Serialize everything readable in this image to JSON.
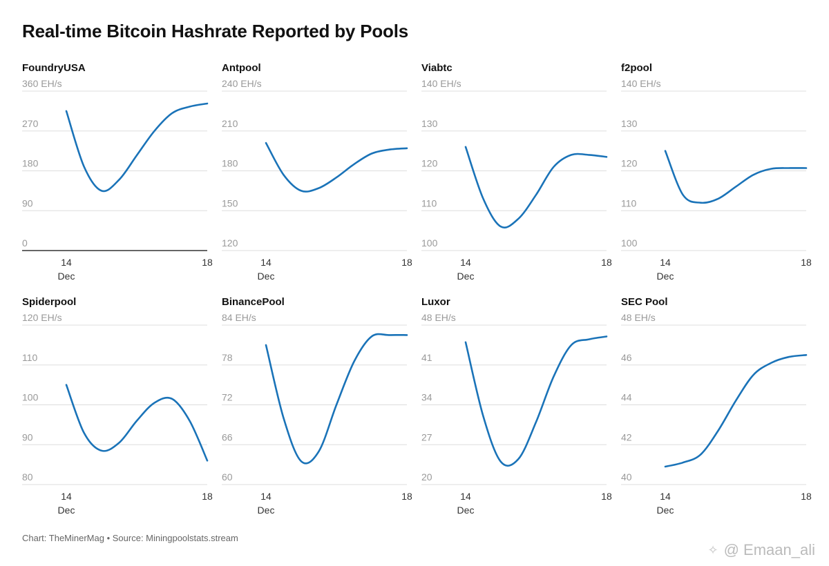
{
  "title": "Real-time Bitcoin Hashrate Reported by Pools",
  "footer": "Chart: TheMinerMag • Source: Miningpoolstats.stream",
  "watermark": {
    "icon": "binance-logo-icon",
    "text": "@ Emaan_ali"
  },
  "colors": {
    "line": "#1a73b8",
    "grid": "#dddddd",
    "baseline": "#333333"
  },
  "x_axis": {
    "ticks": [
      {
        "x": 14,
        "label": "14",
        "sublabel": "Dec"
      },
      {
        "x": 18,
        "label": "18",
        "sublabel": ""
      }
    ],
    "range": [
      14,
      18
    ]
  },
  "chart_data": [
    {
      "type": "line",
      "title": "FoundryUSA",
      "unit": "EH/s",
      "ylim": [
        0,
        360
      ],
      "yticks": [
        "360 EH/s",
        "270",
        "180",
        "90",
        "0"
      ],
      "ytick_values": [
        360,
        270,
        180,
        90,
        0
      ],
      "baseline_dark": true,
      "x": [
        14,
        14.5,
        15,
        15.5,
        16,
        16.5,
        17,
        17.5,
        18
      ],
      "y": [
        315,
        190,
        135,
        160,
        215,
        270,
        310,
        325,
        332
      ]
    },
    {
      "type": "line",
      "title": "Antpool",
      "unit": "EH/s",
      "ylim": [
        120,
        240
      ],
      "yticks": [
        "240 EH/s",
        "210",
        "180",
        "150",
        "120"
      ],
      "ytick_values": [
        240,
        210,
        180,
        150,
        120
      ],
      "baseline_dark": false,
      "x": [
        14,
        14.5,
        15,
        15.5,
        16,
        16.5,
        17,
        17.5,
        18
      ],
      "y": [
        201,
        177,
        165,
        167,
        175,
        185,
        193,
        196,
        197
      ]
    },
    {
      "type": "line",
      "title": "Viabtc",
      "unit": "EH/s",
      "ylim": [
        100,
        140
      ],
      "yticks": [
        "140 EH/s",
        "130",
        "120",
        "110",
        "100"
      ],
      "ytick_values": [
        140,
        130,
        120,
        110,
        100
      ],
      "baseline_dark": false,
      "x": [
        14,
        14.5,
        15,
        15.5,
        16,
        16.5,
        17,
        17.5,
        18
      ],
      "y": [
        126,
        113,
        106,
        108,
        114,
        121,
        124,
        124,
        123.5
      ]
    },
    {
      "type": "line",
      "title": "f2pool",
      "unit": "EH/s",
      "ylim": [
        100,
        140
      ],
      "yticks": [
        "140 EH/s",
        "130",
        "120",
        "110",
        "100"
      ],
      "ytick_values": [
        140,
        130,
        120,
        110,
        100
      ],
      "baseline_dark": false,
      "x": [
        14,
        14.5,
        15,
        15.5,
        16,
        16.5,
        17,
        17.5,
        18
      ],
      "y": [
        125,
        114,
        112,
        113,
        116,
        119,
        120.5,
        120.7,
        120.7
      ]
    },
    {
      "type": "line",
      "title": "Spiderpool",
      "unit": "EH/s",
      "ylim": [
        80,
        120
      ],
      "yticks": [
        "120 EH/s",
        "110",
        "100",
        "90",
        "80"
      ],
      "ytick_values": [
        120,
        110,
        100,
        90,
        80
      ],
      "baseline_dark": false,
      "x": [
        14,
        14.5,
        15,
        15.5,
        16,
        16.5,
        17,
        17.5,
        18
      ],
      "y": [
        105,
        93,
        88.5,
        90.5,
        96,
        100.5,
        101.5,
        96,
        86
      ]
    },
    {
      "type": "line",
      "title": "BinancePool",
      "unit": "EH/s",
      "ylim": [
        60,
        84
      ],
      "yticks": [
        "84 EH/s",
        "78",
        "72",
        "66",
        "60"
      ],
      "ytick_values": [
        84,
        78,
        72,
        66,
        60
      ],
      "baseline_dark": false,
      "x": [
        14,
        14.5,
        15,
        15.5,
        16,
        16.5,
        17,
        17.5,
        18
      ],
      "y": [
        81,
        70,
        63.5,
        65,
        72,
        78.5,
        82.3,
        82.5,
        82.5
      ]
    },
    {
      "type": "line",
      "title": "Luxor",
      "unit": "EH/s",
      "ylim": [
        20,
        48
      ],
      "yticks": [
        "48 EH/s",
        "41",
        "34",
        "27",
        "20"
      ],
      "ytick_values": [
        48,
        41,
        34,
        27,
        20
      ],
      "baseline_dark": false,
      "x": [
        14,
        14.5,
        15,
        15.5,
        16,
        16.5,
        17,
        17.5,
        18
      ],
      "y": [
        45,
        32,
        24,
        24.5,
        31,
        39,
        44.5,
        45.5,
        46
      ]
    },
    {
      "type": "line",
      "title": "SEC Pool",
      "unit": "EH/s",
      "ylim": [
        40,
        48
      ],
      "yticks": [
        "48 EH/s",
        "46",
        "44",
        "42",
        "40"
      ],
      "ytick_values": [
        48,
        46,
        44,
        42,
        40
      ],
      "baseline_dark": false,
      "x": [
        14,
        14.5,
        15,
        15.5,
        16,
        16.5,
        17,
        17.5,
        18
      ],
      "y": [
        40.9,
        41.1,
        41.5,
        42.7,
        44.2,
        45.5,
        46.1,
        46.4,
        46.5
      ]
    }
  ]
}
